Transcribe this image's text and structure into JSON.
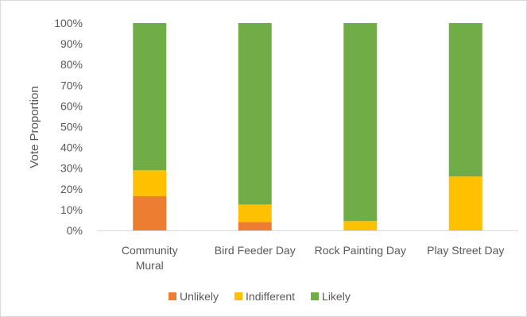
{
  "chart_data": {
    "type": "bar",
    "stacked": true,
    "categories": [
      "Community Mural",
      "Bird Feeder Day",
      "Rock Painting Day",
      "Play Street Day"
    ],
    "category_lines": [
      [
        "Community",
        "Mural"
      ],
      [
        "Bird Feeder Day"
      ],
      [
        "Rock Painting Day"
      ],
      [
        "Play Street Day"
      ]
    ],
    "series": [
      {
        "name": "Unlikely",
        "color": "#ed7d31",
        "values": [
          0.165,
          0.04,
          0.0,
          0.0
        ]
      },
      {
        "name": "Indifferent",
        "color": "#ffc000",
        "values": [
          0.125,
          0.085,
          0.045,
          0.26
        ]
      },
      {
        "name": "Likely",
        "color": "#70ad47",
        "values": [
          0.71,
          0.875,
          0.955,
          0.74
        ]
      }
    ],
    "ylim": [
      0,
      1
    ],
    "yticks": [
      "0%",
      "10%",
      "20%",
      "30%",
      "40%",
      "50%",
      "60%",
      "70%",
      "80%",
      "90%",
      "100%"
    ],
    "ylabel": "Vote Proportion",
    "xlabel": "",
    "title": "",
    "grid": false,
    "legend_position": "bottom"
  }
}
